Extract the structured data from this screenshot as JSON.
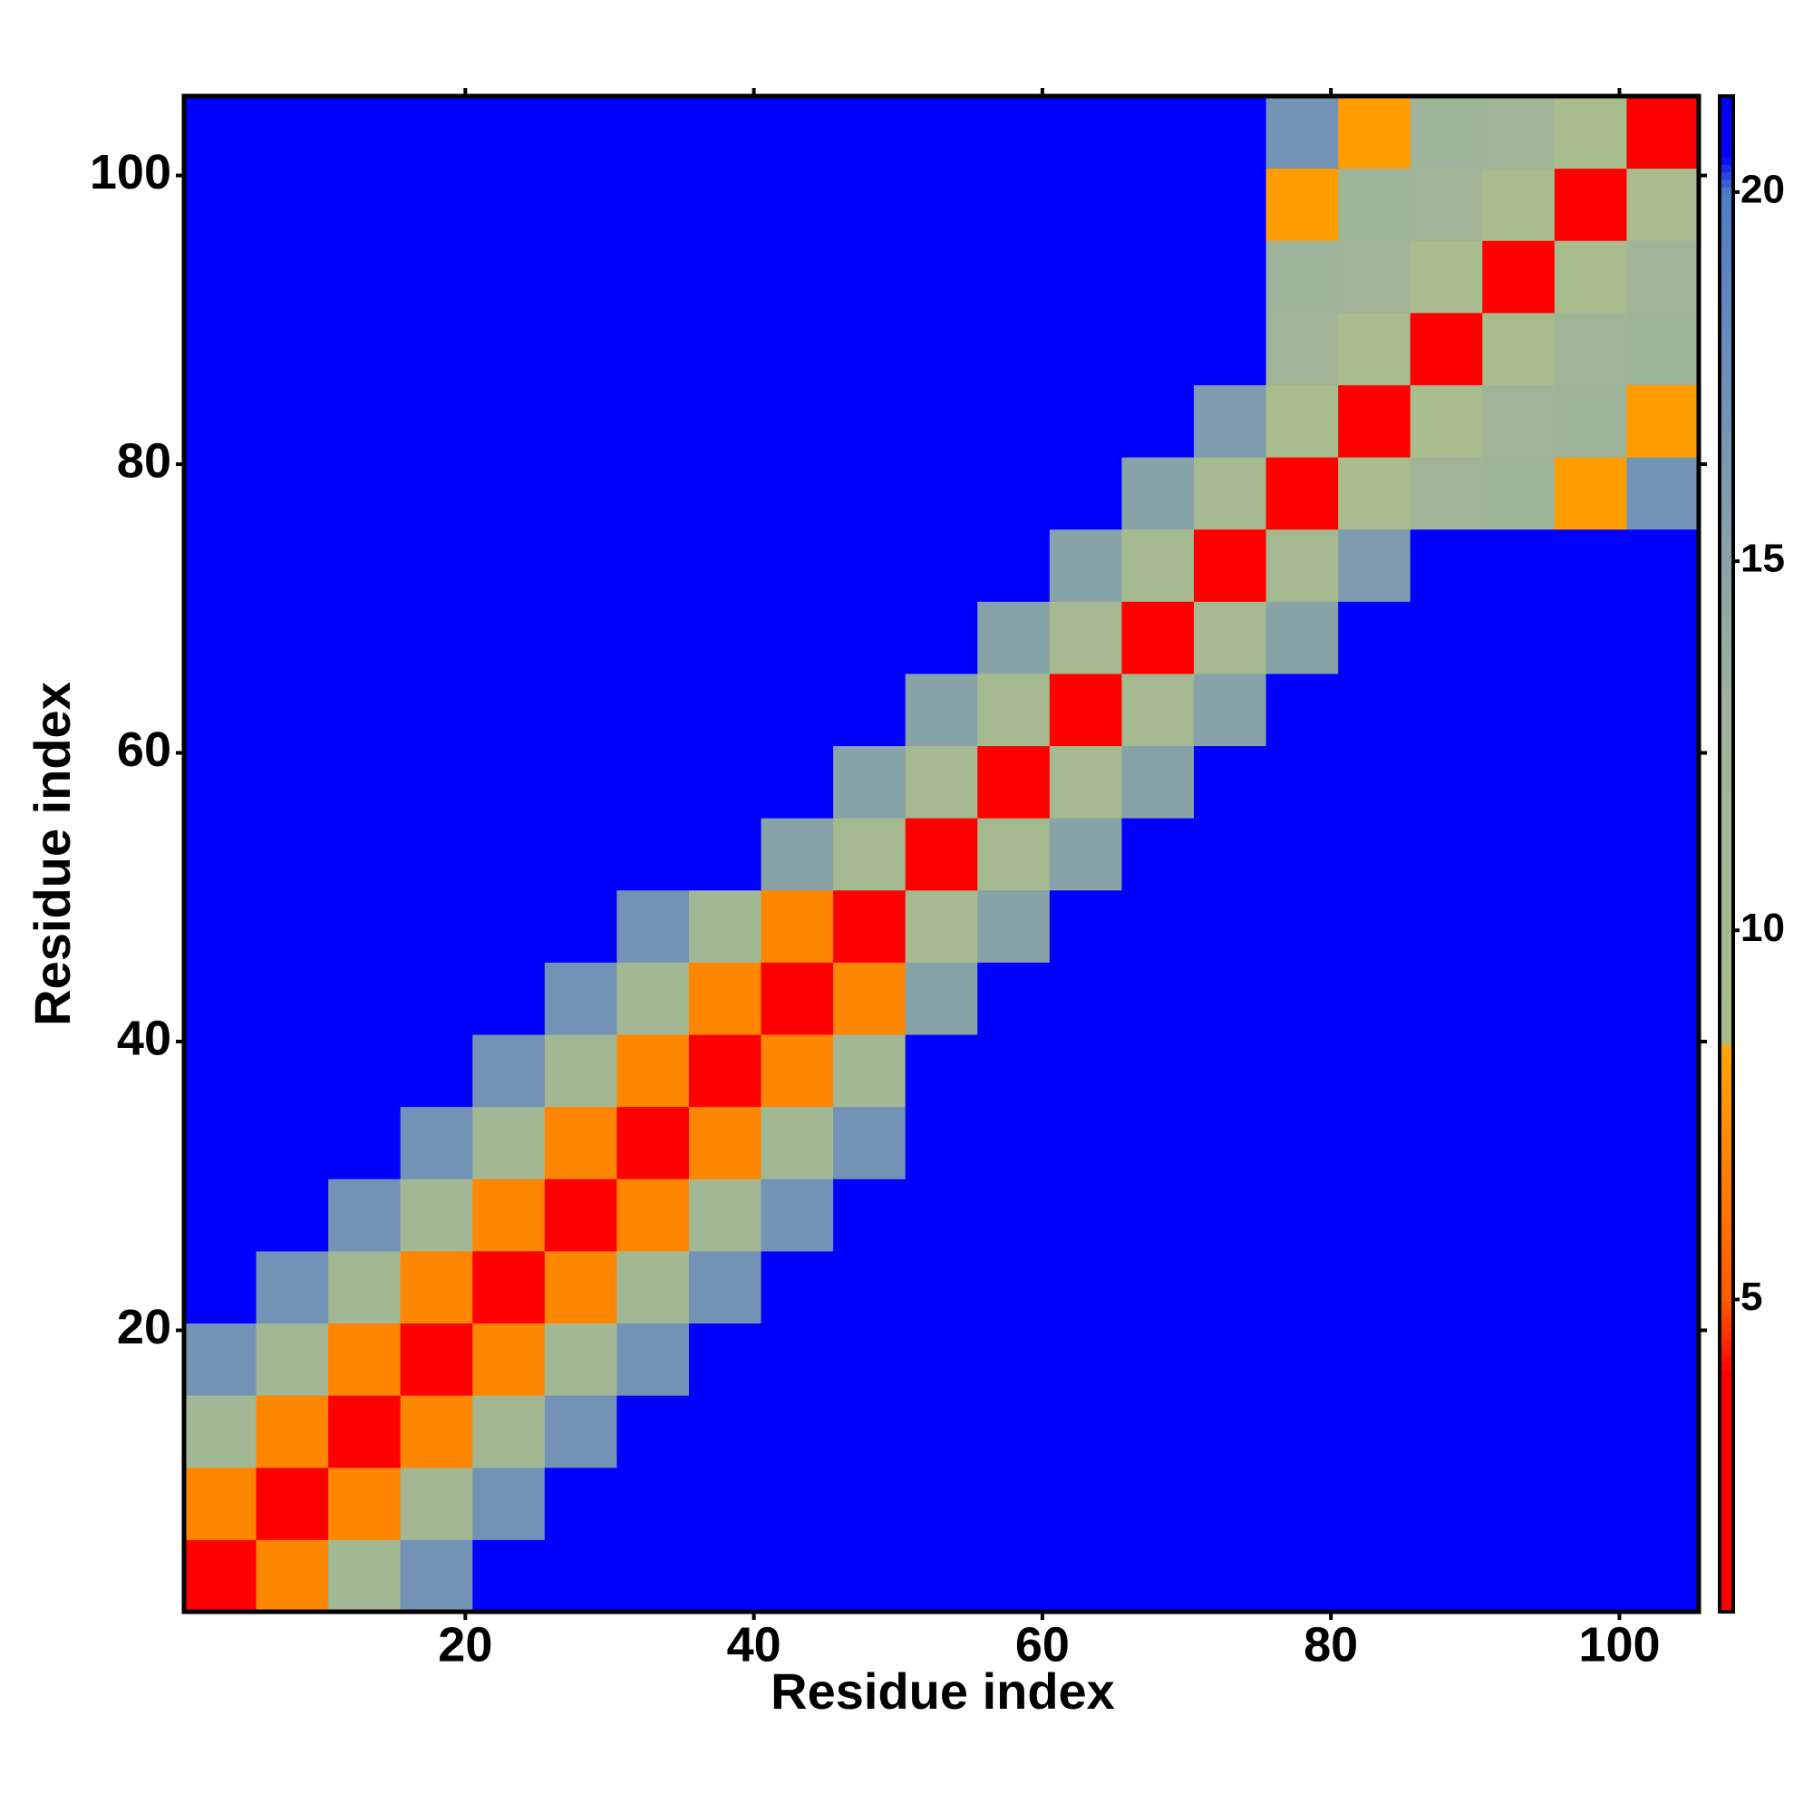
{
  "chart_data": {
    "type": "heatmap",
    "x_label": "Residue index",
    "y_label": "Residue index",
    "xbins": [
      0.5,
      5.5,
      10.5,
      15.5,
      20.5,
      25.5,
      30.5,
      35.5,
      40.5,
      45.5,
      50.5,
      55.5,
      60.5,
      65.5,
      70.5,
      75.5,
      80.5,
      85.5,
      90.5,
      95.5,
      100.5,
      105.5
    ],
    "ybins": [
      0.5,
      5.5,
      10.5,
      15.5,
      20.5,
      25.5,
      30.5,
      35.5,
      40.5,
      45.5,
      50.5,
      55.5,
      60.5,
      65.5,
      70.5,
      75.5,
      80.5,
      85.5,
      90.5,
      95.5,
      100.5,
      105.5
    ],
    "xlim": [
      0.5,
      105.5
    ],
    "ylim": [
      0.5,
      105.5
    ],
    "xticks": [
      20,
      40,
      60,
      80,
      100
    ],
    "yticks": [
      20,
      40,
      60,
      80,
      100
    ],
    "zlim": [
      0.77,
      21.3
    ],
    "zticks": [
      5,
      10,
      15,
      20
    ],
    "colorscale": [
      [
        0.77,
        "#ff0000"
      ],
      [
        4,
        "#ff0000"
      ],
      [
        5,
        "#ff5a00"
      ],
      [
        8.4,
        "#ffa500"
      ],
      [
        8.5,
        "#a9bd8b"
      ],
      [
        13,
        "#9db39a"
      ],
      [
        17,
        "#7393b6"
      ],
      [
        20,
        "#4d7bc6"
      ],
      [
        20.5,
        "#0000ff"
      ],
      [
        21.3,
        "#0000ff"
      ]
    ],
    "z": [
      [
        2,
        7,
        11,
        17,
        21,
        21,
        21,
        21,
        21,
        21,
        21,
        21,
        21,
        21,
        21,
        21,
        21,
        21,
        21,
        21,
        21
      ],
      [
        7,
        2,
        7,
        11,
        17,
        21,
        21,
        21,
        21,
        21,
        21,
        21,
        21,
        21,
        21,
        21,
        21,
        21,
        21,
        21,
        21
      ],
      [
        11,
        7,
        2,
        7,
        11,
        17,
        21,
        21,
        21,
        21,
        21,
        21,
        21,
        21,
        21,
        21,
        21,
        21,
        21,
        21,
        21
      ],
      [
        17,
        11,
        7,
        2,
        7,
        11,
        17,
        21,
        21,
        21,
        21,
        21,
        21,
        21,
        21,
        21,
        21,
        21,
        21,
        21,
        21
      ],
      [
        21,
        17,
        11,
        7,
        2,
        7,
        11,
        17,
        21,
        21,
        21,
        21,
        21,
        21,
        21,
        21,
        21,
        21,
        21,
        21,
        21
      ],
      [
        21,
        21,
        17,
        11,
        7,
        2,
        7,
        11,
        17,
        21,
        21,
        21,
        21,
        21,
        21,
        21,
        21,
        21,
        21,
        21,
        21
      ],
      [
        21,
        21,
        21,
        17,
        11,
        7,
        2,
        7,
        11,
        17,
        21,
        21,
        21,
        21,
        21,
        21,
        21,
        21,
        21,
        21,
        21
      ],
      [
        21,
        21,
        21,
        21,
        17,
        11,
        7,
        2,
        7,
        11,
        21,
        21,
        21,
        21,
        21,
        21,
        21,
        21,
        21,
        21,
        21
      ],
      [
        21,
        21,
        21,
        21,
        21,
        17,
        11,
        7,
        2,
        7,
        15,
        21,
        21,
        21,
        21,
        21,
        21,
        21,
        21,
        21,
        21
      ],
      [
        21,
        21,
        21,
        21,
        21,
        21,
        17,
        11,
        7,
        2,
        10,
        15,
        21,
        21,
        21,
        21,
        21,
        21,
        21,
        21,
        21
      ],
      [
        21,
        21,
        21,
        21,
        21,
        21,
        21,
        21,
        15,
        10,
        2,
        10,
        15,
        21,
        21,
        21,
        21,
        21,
        21,
        21,
        21
      ],
      [
        21,
        21,
        21,
        21,
        21,
        21,
        21,
        21,
        21,
        15,
        10,
        2,
        10,
        15,
        21,
        21,
        21,
        21,
        21,
        21,
        21
      ],
      [
        21,
        21,
        21,
        21,
        21,
        21,
        21,
        21,
        21,
        21,
        15,
        10,
        2,
        10,
        15,
        21,
        21,
        21,
        21,
        21,
        21
      ],
      [
        21,
        21,
        21,
        21,
        21,
        21,
        21,
        21,
        21,
        21,
        21,
        15,
        10,
        2,
        10,
        15,
        21,
        21,
        21,
        21,
        21
      ],
      [
        21,
        21,
        21,
        21,
        21,
        21,
        21,
        21,
        21,
        21,
        21,
        21,
        15,
        10,
        2,
        10,
        16,
        21,
        21,
        21,
        21
      ],
      [
        21,
        21,
        21,
        21,
        21,
        21,
        21,
        21,
        21,
        21,
        21,
        21,
        21,
        15,
        10,
        2,
        9,
        12,
        13,
        8,
        17
      ],
      [
        21,
        21,
        21,
        21,
        21,
        21,
        21,
        21,
        21,
        21,
        21,
        21,
        21,
        21,
        16,
        9,
        2,
        9,
        12,
        13,
        8
      ],
      [
        21,
        21,
        21,
        21,
        21,
        21,
        21,
        21,
        21,
        21,
        21,
        21,
        21,
        21,
        21,
        12,
        9,
        2,
        9,
        12,
        13
      ],
      [
        21,
        21,
        21,
        21,
        21,
        21,
        21,
        21,
        21,
        21,
        21,
        21,
        21,
        21,
        21,
        13,
        12,
        9,
        2,
        9,
        12
      ],
      [
        21,
        21,
        21,
        21,
        21,
        21,
        21,
        21,
        21,
        21,
        21,
        21,
        21,
        21,
        21,
        8,
        13,
        12,
        9,
        2,
        9
      ],
      [
        21,
        21,
        21,
        21,
        21,
        21,
        21,
        21,
        21,
        21,
        21,
        21,
        21,
        21,
        21,
        17,
        8,
        13,
        12,
        9,
        2
      ]
    ]
  }
}
